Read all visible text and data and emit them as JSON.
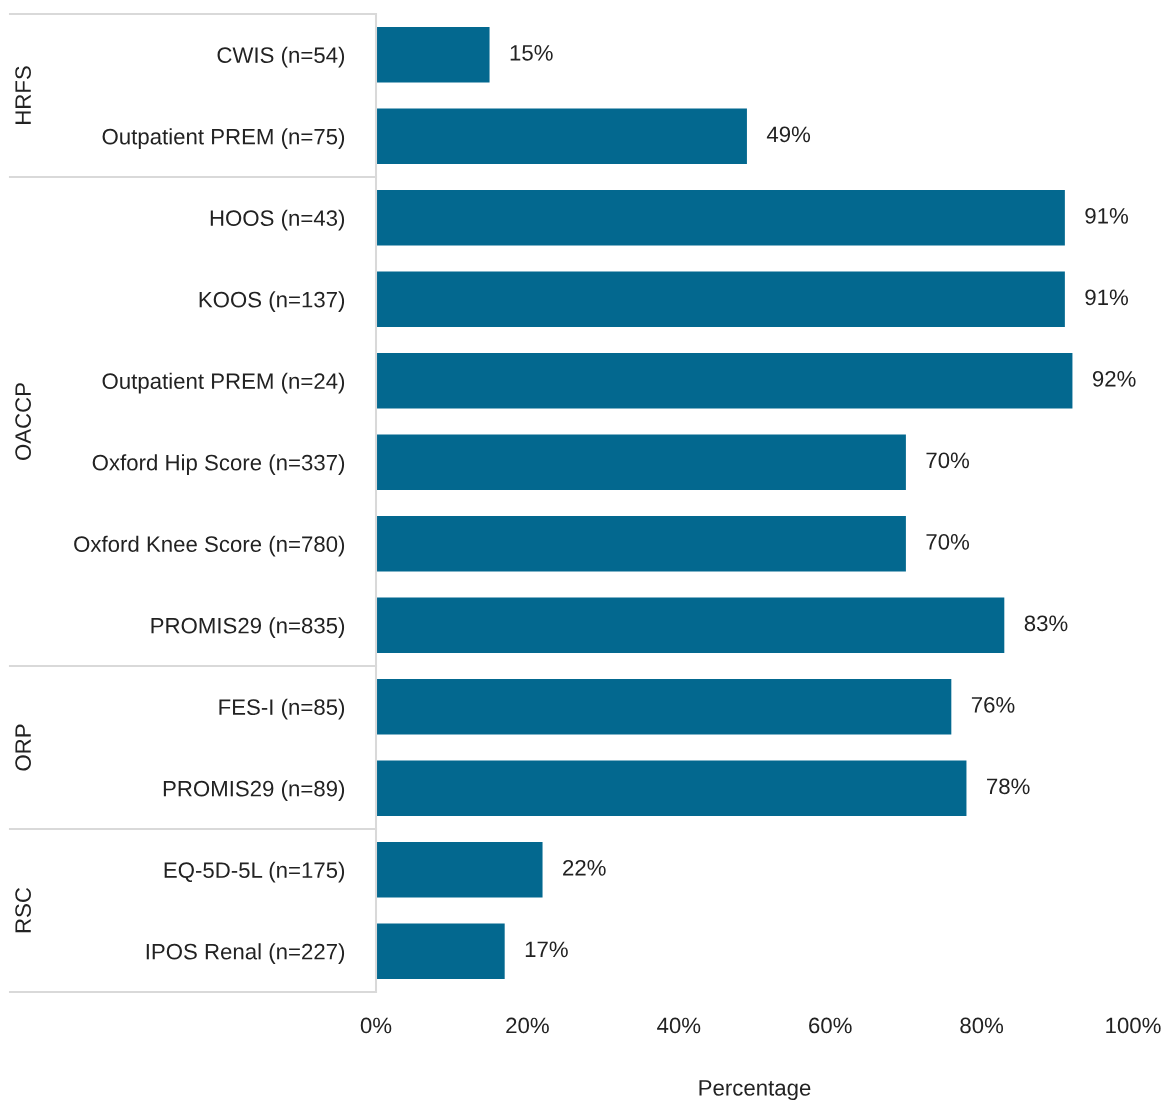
{
  "chart_data": {
    "type": "bar",
    "orientation": "horizontal",
    "xlabel": "Percentage",
    "categories": [
      "CWIS (n=54)",
      "Outpatient PREM (n=75)",
      "HOOS (n=43)",
      "KOOS (n=137)",
      "Outpatient PREM (n=24)",
      "Oxford Hip Score (n=337)",
      "Oxford Knee Score (n=780)",
      "PROMIS29 (n=835)",
      "FES-I (n=85)",
      "PROMIS29 (n=89)",
      "EQ-5D-5L (n=175)",
      "IPOS Renal (n=227)"
    ],
    "values": [
      15,
      49,
      91,
      91,
      92,
      70,
      70,
      83,
      76,
      78,
      22,
      17
    ],
    "value_labels": [
      "15%",
      "49%",
      "91%",
      "91%",
      "92%",
      "70%",
      "70%",
      "83%",
      "76%",
      "78%",
      "22%",
      "17%"
    ],
    "color": "#03688f",
    "xlim": [
      0,
      100
    ],
    "xticks": [
      {
        "value": 0,
        "label": "0%"
      },
      {
        "value": 20,
        "label": "20%"
      },
      {
        "value": 40,
        "label": "40%"
      },
      {
        "value": 60,
        "label": "60%"
      },
      {
        "value": 80,
        "label": "80%"
      },
      {
        "value": 100,
        "label": "100%"
      }
    ],
    "annotations": [
      "HRFS",
      "OACCP",
      "ORP",
      "RSC"
    ],
    "grid": false,
    "legend": false
  }
}
